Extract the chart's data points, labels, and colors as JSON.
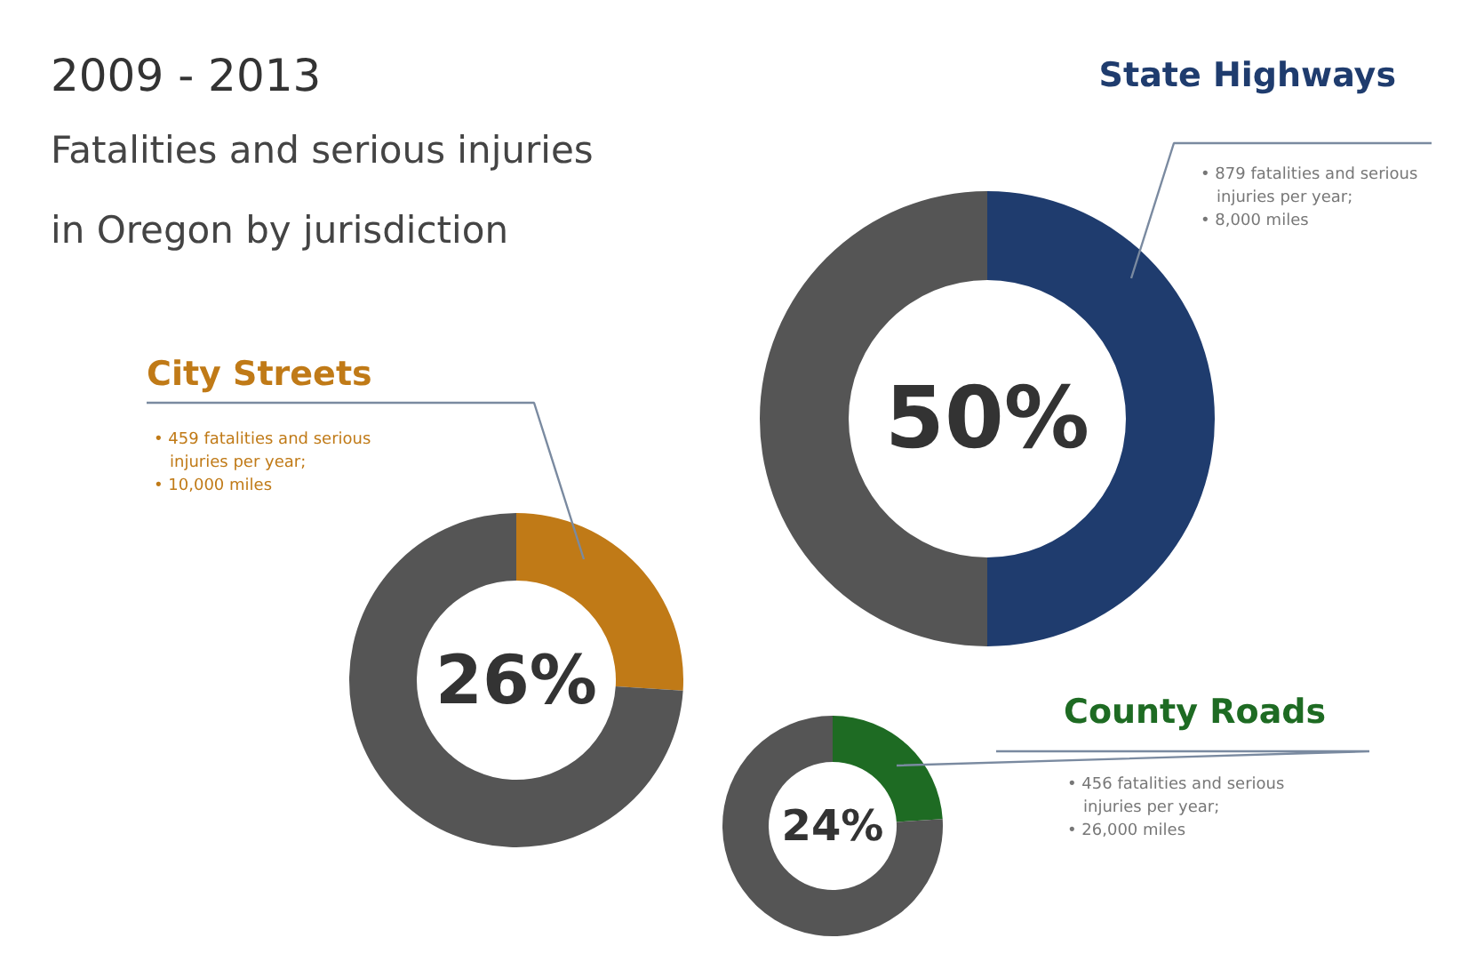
{
  "chart_data": [
    {
      "type": "other",
      "title": "2009 - 2013",
      "subtitle": "Fatalities and serious injuries\nin Oregon by jurisdiction"
    },
    {
      "type": "donut",
      "title": "State Highways",
      "categories": [
        null,
        null
      ],
      "values": [
        50,
        50
      ],
      "colors": [
        "#1f3c6e",
        "#555555"
      ],
      "value_labels": [
        "50%",
        null
      ],
      "annotations": [
        "• 879 fatalities and serious injuries per year;",
        "• 8,000 miles"
      ]
    },
    {
      "type": "donut",
      "title": "City Streets",
      "categories": [
        null,
        null
      ],
      "values": [
        26,
        74
      ],
      "colors": [
        "#c07a17",
        "#555555"
      ],
      "value_labels": [
        "26%",
        null
      ],
      "annotations": [
        "• 459 fatalities and serious injuries per year;",
        "• 10,000 miles"
      ]
    },
    {
      "type": "donut",
      "title": "County Roads",
      "categories": [
        null,
        null
      ],
      "values": [
        24,
        76
      ],
      "colors": [
        "#1e6b23",
        "#555555"
      ],
      "value_labels": [
        "24%",
        null
      ],
      "annotations": [
        "• 456 fatalities and serious injuries per year;",
        "• 26,000 miles"
      ]
    }
  ]
}
